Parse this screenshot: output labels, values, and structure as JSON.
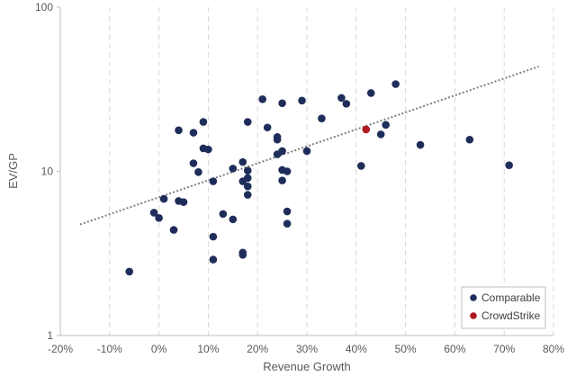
{
  "chart_data": {
    "type": "scatter",
    "title": "",
    "xlabel": "Revenue Growth",
    "ylabel": "EV/GP",
    "xlim": [
      -0.2,
      0.8
    ],
    "ylim": [
      1,
      100
    ],
    "y_scale": "log",
    "x_ticks": [
      -0.2,
      -0.1,
      0.0,
      0.1,
      0.2,
      0.3,
      0.4,
      0.5,
      0.6,
      0.7,
      0.8
    ],
    "x_tick_labels": [
      "-20%",
      "-10%",
      "0%",
      "10%",
      "20%",
      "30%",
      "40%",
      "50%",
      "60%",
      "70%",
      "80%"
    ],
    "y_ticks": [
      1,
      10,
      100
    ],
    "y_tick_labels": [
      "1",
      "10",
      "100"
    ],
    "grid": {
      "x": true,
      "y": false,
      "style": "dashed"
    },
    "legend_position": "bottom-right",
    "series": [
      {
        "name": "Comparable",
        "color": "#1f2d5a",
        "points": [
          [
            -0.06,
            2.45
          ],
          [
            -0.01,
            5.6
          ],
          [
            0.0,
            5.2
          ],
          [
            0.01,
            6.8
          ],
          [
            0.03,
            4.4
          ],
          [
            0.04,
            17.8
          ],
          [
            0.04,
            6.6
          ],
          [
            0.05,
            6.5
          ],
          [
            0.07,
            17.2
          ],
          [
            0.07,
            11.2
          ],
          [
            0.08,
            9.9
          ],
          [
            0.09,
            20.0
          ],
          [
            0.09,
            13.8
          ],
          [
            0.1,
            13.6
          ],
          [
            0.11,
            8.7
          ],
          [
            0.11,
            4.0
          ],
          [
            0.11,
            2.9
          ],
          [
            0.13,
            5.5
          ],
          [
            0.15,
            10.4
          ],
          [
            0.15,
            5.1
          ],
          [
            0.17,
            11.4
          ],
          [
            0.17,
            8.7
          ],
          [
            0.17,
            3.2
          ],
          [
            0.17,
            3.1
          ],
          [
            0.18,
            20.0
          ],
          [
            0.18,
            10.1
          ],
          [
            0.18,
            9.1
          ],
          [
            0.18,
            8.1
          ],
          [
            0.18,
            7.2
          ],
          [
            0.21,
            27.5
          ],
          [
            0.22,
            18.5
          ],
          [
            0.24,
            16.2
          ],
          [
            0.24,
            15.6
          ],
          [
            0.24,
            12.7
          ],
          [
            0.25,
            26.0
          ],
          [
            0.25,
            13.3
          ],
          [
            0.25,
            10.2
          ],
          [
            0.25,
            8.8
          ],
          [
            0.26,
            10.0
          ],
          [
            0.26,
            5.7
          ],
          [
            0.26,
            4.8
          ],
          [
            0.29,
            27.0
          ],
          [
            0.3,
            13.3
          ],
          [
            0.33,
            21.0
          ],
          [
            0.37,
            28.0
          ],
          [
            0.38,
            25.8
          ],
          [
            0.41,
            10.8
          ],
          [
            0.43,
            30.0
          ],
          [
            0.45,
            16.8
          ],
          [
            0.46,
            19.2
          ],
          [
            0.48,
            34.0
          ],
          [
            0.53,
            14.5
          ],
          [
            0.63,
            15.6
          ],
          [
            0.71,
            10.9
          ]
        ]
      },
      {
        "name": "CrowdStrike",
        "color": "#b0191e",
        "points": [
          [
            0.42,
            18.0
          ]
        ]
      }
    ],
    "trendline": {
      "style": "dotted",
      "color": "#7f7f7f",
      "points": [
        [
          -0.16,
          4.75
        ],
        [
          0.77,
          43.5
        ]
      ]
    }
  }
}
